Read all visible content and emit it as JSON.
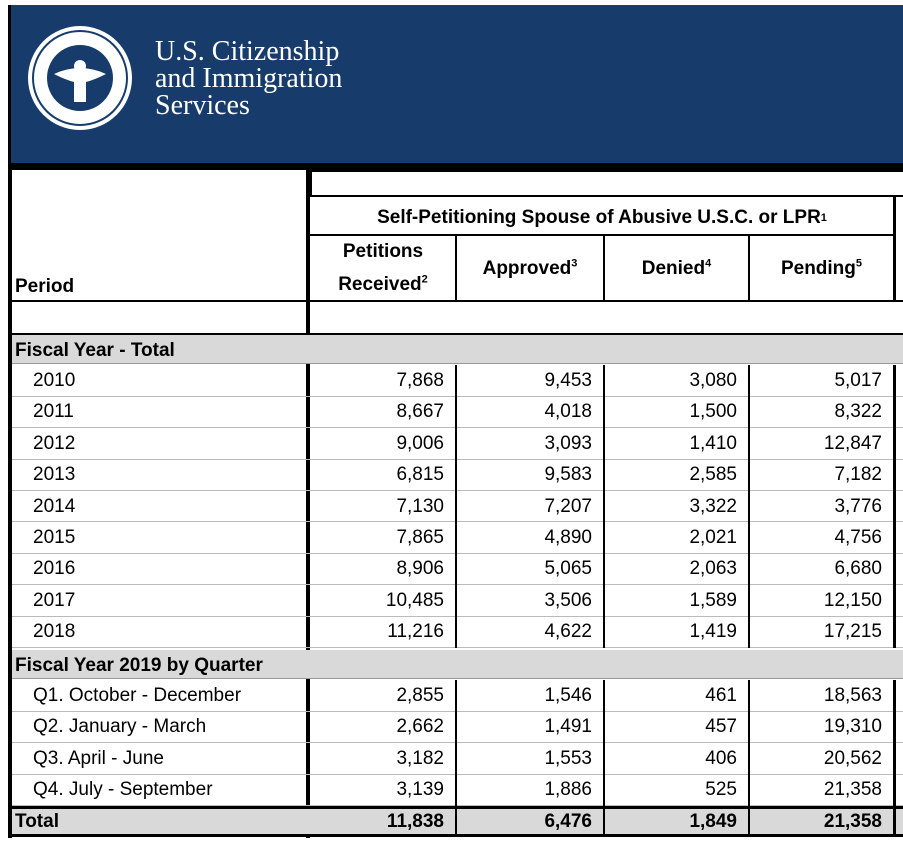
{
  "header": {
    "agency_lines": [
      "U.S. Citizenship",
      "and Immigration",
      "Services"
    ]
  },
  "table": {
    "period_label": "Period",
    "group": {
      "text": "Self-Petitioning Spouse of Abusive U.S.C. or LPR",
      "note": "1"
    },
    "columns": [
      {
        "lines": [
          "Petitions",
          "Received"
        ],
        "note": "2"
      },
      {
        "lines": [
          "Approved"
        ],
        "note": "3"
      },
      {
        "lines": [
          "Denied"
        ],
        "note": "4"
      },
      {
        "lines": [
          "Pending"
        ],
        "note": "5"
      }
    ],
    "sections": [
      {
        "title": "Fiscal Year - Total",
        "rows": [
          [
            "2010",
            "7,868",
            "9,453",
            "3,080",
            "5,017"
          ],
          [
            "2011",
            "8,667",
            "4,018",
            "1,500",
            "8,322"
          ],
          [
            "2012",
            "9,006",
            "3,093",
            "1,410",
            "12,847"
          ],
          [
            "2013",
            "6,815",
            "9,583",
            "2,585",
            "7,182"
          ],
          [
            "2014",
            "7,130",
            "7,207",
            "3,322",
            "3,776"
          ],
          [
            "2015",
            "7,865",
            "4,890",
            "2,021",
            "4,756"
          ],
          [
            "2016",
            "8,906",
            "5,065",
            "2,063",
            "6,680"
          ],
          [
            "2017",
            "10,485",
            "3,506",
            "1,589",
            "12,150"
          ],
          [
            "2018",
            "11,216",
            "4,622",
            "1,419",
            "17,215"
          ]
        ]
      },
      {
        "title": "Fiscal Year 2019 by Quarter",
        "rows": [
          [
            "Q1. October - December",
            "2,855",
            "1,546",
            "461",
            "18,563"
          ],
          [
            "Q2. January - March",
            "2,662",
            "1,491",
            "457",
            "19,310"
          ],
          [
            "Q3. April - June",
            "3,182",
            "1,553",
            "406",
            "20,562"
          ],
          [
            "Q4. July - September",
            "3,139",
            "1,886",
            "525",
            "21,358"
          ]
        ]
      }
    ],
    "total": [
      "Total",
      "11,838",
      "6,476",
      "1,849",
      "21,358"
    ]
  }
}
